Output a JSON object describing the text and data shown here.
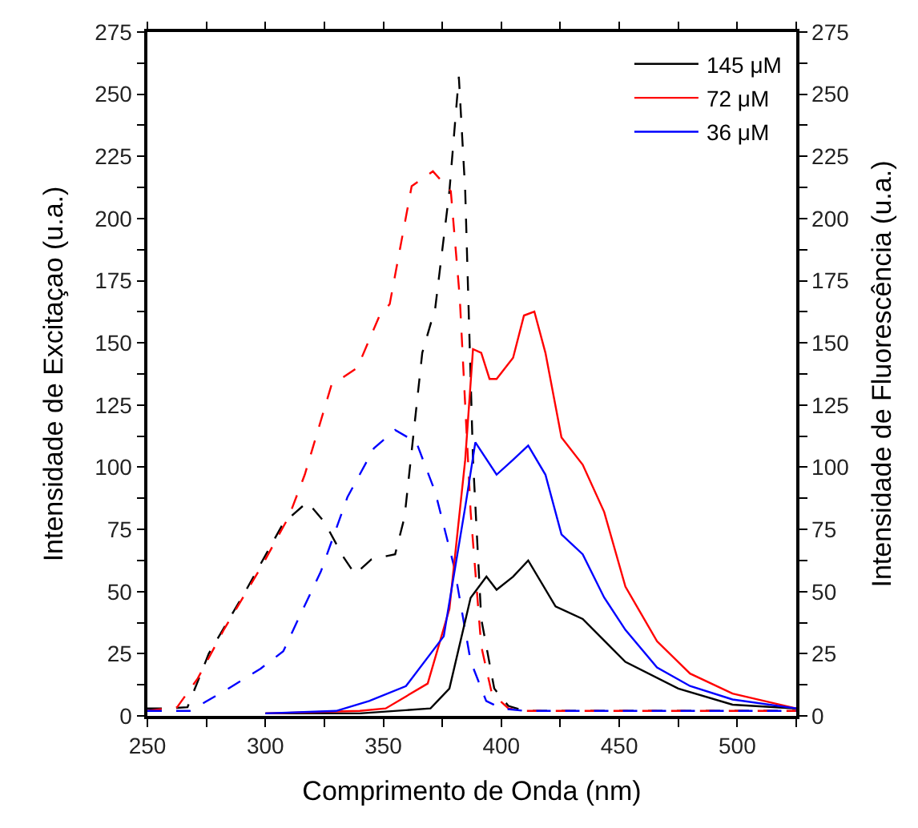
{
  "chart_data": {
    "type": "line",
    "xlabel": "Comprimento de Onda (nm)",
    "ylabel": "Intensidade de Excitaçao (u.a.)",
    "y2label": "Intensidade de Fluorescência (u.a.)",
    "xlim": [
      250,
      525
    ],
    "xticks": [
      250,
      {
        "value": 275,
        "label": null
      },
      300,
      {
        "value": 325,
        "label": null
      },
      350,
      {
        "value": 375,
        "label": null
      },
      400,
      {
        "value": 425,
        "label": null
      },
      450,
      {
        "value": 475,
        "label": null
      },
      500,
      {
        "value": 525,
        "label": null
      }
    ],
    "ylim": [
      0,
      275
    ],
    "yticks": [
      0,
      {
        "value": 12.5,
        "label": null
      },
      25,
      {
        "value": 37.5,
        "label": null
      },
      50,
      {
        "value": 62.5,
        "label": null
      },
      75,
      {
        "value": 87.5,
        "label": null
      },
      100,
      {
        "value": 112.5,
        "label": null
      },
      125,
      {
        "value": 137.5,
        "label": null
      },
      150,
      {
        "value": 162.5,
        "label": null
      },
      175,
      {
        "value": 187.5,
        "label": null
      },
      200,
      {
        "value": 212.5,
        "label": null
      },
      225,
      {
        "value": 237.5,
        "label": null
      },
      250,
      {
        "value": 262.5,
        "label": null
      },
      275
    ],
    "y2lim": [
      0,
      275
    ],
    "y2ticks": [
      0,
      {
        "value": 12.5,
        "label": null
      },
      25,
      {
        "value": 37.5,
        "label": null
      },
      50,
      {
        "value": 62.5,
        "label": null
      },
      75,
      {
        "value": 87.5,
        "label": null
      },
      100,
      {
        "value": 112.5,
        "label": null
      },
      125,
      {
        "value": 137.5,
        "label": null
      },
      150,
      {
        "value": 162.5,
        "label": null
      },
      175,
      {
        "value": 187.5,
        "label": null
      },
      200,
      {
        "value": 212.5,
        "label": null
      },
      225,
      {
        "value": 237.5,
        "label": null
      },
      250,
      {
        "value": 262.5,
        "label": null
      },
      275
    ],
    "legend": "top right",
    "marker": "none",
    "series": [
      {
        "color": "#000000",
        "line_style": "dashed",
        "x": [
          250,
          258,
          267,
          276,
          291.5,
          307.6,
          317.8,
          325,
          333,
          338,
          345,
          355,
          359,
          366.5,
          372,
          378,
          382,
          384.7,
          388,
          391.5,
          397,
          403,
          410,
          450,
          525
        ],
        "values": [
          3,
          3,
          3.5,
          25,
          50,
          77.5,
          86,
          78,
          64,
          57,
          63,
          65,
          80,
          146,
          164,
          211,
          257,
          211,
          103,
          39,
          11,
          4,
          2,
          2,
          2
        ]
      },
      {
        "color": "#ff0000",
        "line_style": "dashed",
        "x": [
          250,
          262.6,
          271.3,
          282.6,
          298.3,
          309.9,
          316.7,
          328,
          339,
          348.4,
          352.7,
          362,
          371,
          378.6,
          382.4,
          387,
          391.5,
          396,
          403,
          410,
          450,
          525
        ],
        "values": [
          2,
          3.5,
          15,
          35,
          60,
          80,
          97,
          133,
          140,
          161,
          165.6,
          213,
          219,
          211,
          168,
          82,
          28,
          9,
          3,
          2,
          2,
          2
        ]
      },
      {
        "color": "#0000ff",
        "line_style": "dashed",
        "x": [
          250,
          268,
          282.6,
          298,
          307.6,
          314,
          323.5,
          334.8,
          346,
          355,
          364,
          372,
          380,
          387,
          393.6,
          400,
          410,
          450,
          525
        ],
        "values": [
          2,
          2,
          10,
          19,
          26,
          39,
          58,
          88,
          107.6,
          115,
          110,
          90,
          60,
          22,
          6,
          3,
          2,
          2,
          2
        ]
      },
      {
        "name": "145 μM",
        "color": "#000000",
        "line_style": "solid",
        "axis": "y2",
        "x": [
          300,
          340,
          370,
          378,
          387,
          393.7,
          398,
          405,
          411.4,
          423,
          434.5,
          452.6,
          475,
          498,
          525
        ],
        "values": [
          1,
          1,
          3,
          11,
          47.5,
          56,
          50.7,
          56,
          62.5,
          44,
          39,
          21.7,
          11,
          4.5,
          3
        ]
      },
      {
        "name": "72 μM",
        "color": "#ff0000",
        "line_style": "solid",
        "axis": "y2",
        "x": [
          300,
          340,
          351,
          368.8,
          378,
          384.7,
          388,
          391.5,
          395,
          398,
          405,
          409.6,
          414,
          418.7,
          425.5,
          434.5,
          443.6,
          452.6,
          466,
          480,
          498,
          525
        ],
        "values": [
          1,
          2,
          3,
          13,
          43,
          103,
          147.5,
          146,
          135.5,
          135.5,
          144,
          161,
          162.6,
          146,
          112,
          101,
          82,
          52,
          30,
          17,
          9,
          3
        ]
      },
      {
        "name": "36 μM",
        "color": "#0000ff",
        "line_style": "solid",
        "axis": "y2",
        "x": [
          300,
          330,
          344,
          359.6,
          375.6,
          384.7,
          389,
          398,
          405,
          411.4,
          418.7,
          425.5,
          434.5,
          443.6,
          452.6,
          466,
          480,
          498,
          525
        ],
        "values": [
          1,
          2,
          6,
          12,
          32,
          84,
          110,
          97,
          103,
          108.7,
          97,
          73,
          65,
          47.6,
          34.6,
          19.5,
          12,
          6.6,
          3
        ]
      }
    ]
  }
}
